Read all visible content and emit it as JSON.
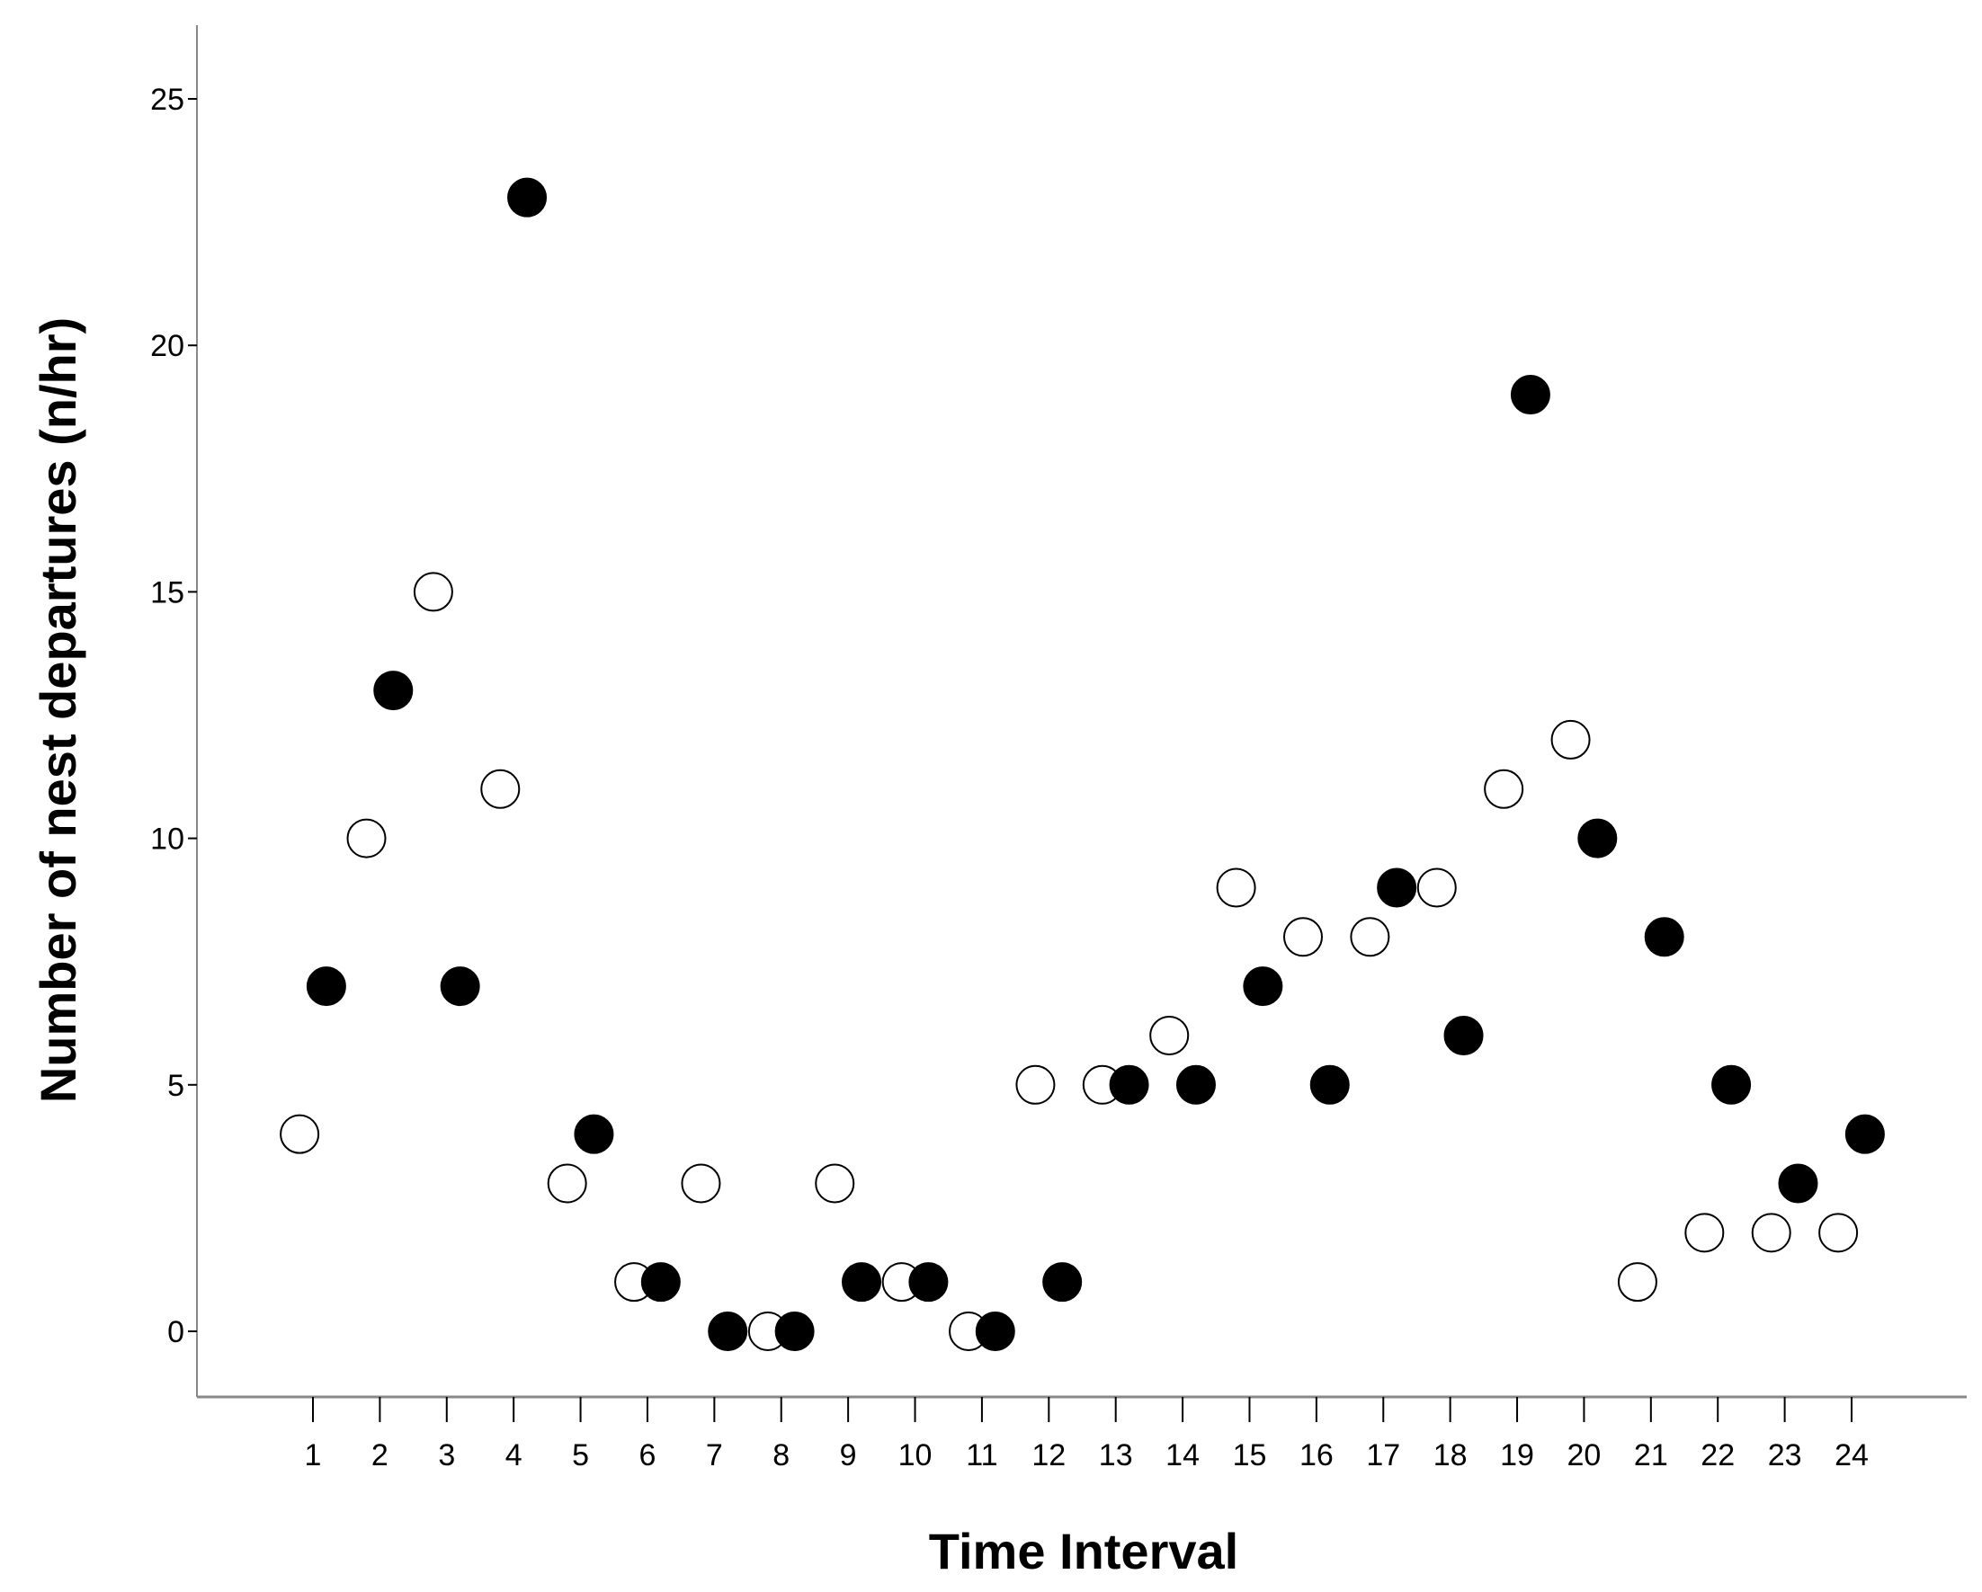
{
  "chart_data": {
    "type": "scatter",
    "title": "",
    "xlabel": "Time Interval",
    "ylabel": "Number of nest departures (n/hr)",
    "xlim": [
      -0.7,
      25.5
    ],
    "ylim": [
      -1.2,
      26.4
    ],
    "x_ticks": [
      1,
      2,
      3,
      4,
      5,
      6,
      7,
      8,
      9,
      10,
      11,
      12,
      13,
      14,
      15,
      16,
      17,
      18,
      19,
      20,
      21,
      22,
      23,
      24
    ],
    "y_ticks": [
      0,
      5,
      10,
      15,
      20,
      25
    ],
    "grid": false,
    "series": [
      {
        "name": "open",
        "marker": "open-circle",
        "offset": -0.2,
        "values": [
          4,
          10,
          15,
          11,
          3,
          1,
          3,
          0,
          3,
          1,
          0,
          5,
          5,
          6,
          9,
          8,
          8,
          9,
          11,
          12,
          1,
          2,
          2,
          2
        ]
      },
      {
        "name": "filled",
        "marker": "filled-circle",
        "offset": 0.2,
        "values": [
          7,
          13,
          7,
          23,
          4,
          1,
          0,
          0,
          1,
          1,
          0,
          1,
          5,
          5,
          7,
          5,
          9,
          6,
          19,
          10,
          8,
          5,
          3,
          4
        ]
      }
    ]
  }
}
